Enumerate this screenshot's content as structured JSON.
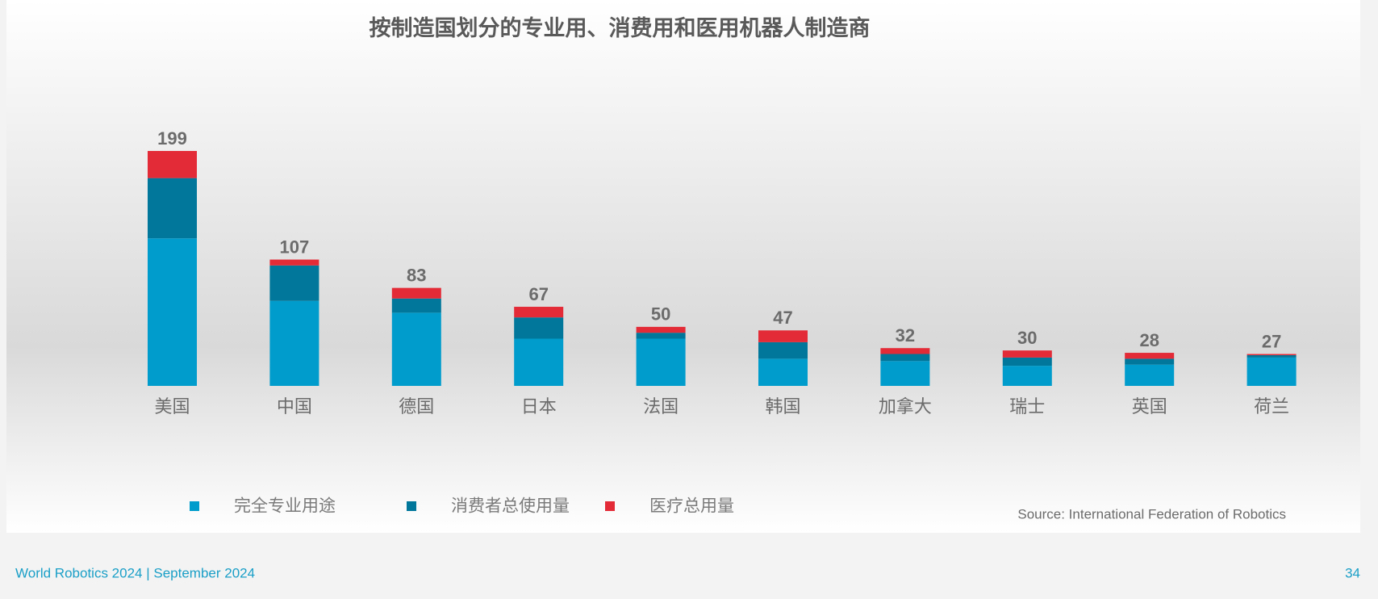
{
  "chart_data": {
    "type": "stacked_bar",
    "title": "按制造国划分的专业用、消费用和医用机器人制造商",
    "categories": [
      "美国",
      "中国",
      "德国",
      "日本",
      "法国",
      "韩国",
      "加拿大",
      "瑞士",
      "英国",
      "荷兰"
    ],
    "series": [
      {
        "name": "完全专业用途",
        "color": "#009ccc",
        "values": [
          125,
          72,
          62,
          40,
          40,
          23,
          21,
          17,
          18,
          24
        ]
      },
      {
        "name": "消费者总使用量",
        "color": "#00779b",
        "values": [
          51,
          30,
          12,
          18,
          5,
          14,
          6,
          7,
          5,
          2
        ]
      },
      {
        "name": "医疗总用量",
        "color": "#e32b37",
        "values": [
          23,
          5,
          9,
          9,
          5,
          10,
          5,
          6,
          5,
          1
        ]
      }
    ],
    "totals": [
      199,
      107,
      83,
      67,
      50,
      47,
      32,
      30,
      28,
      27
    ],
    "source": "Source: International Federation of Robotics",
    "footer": "World Robotics 2024  | September 2024",
    "page_number": "34"
  }
}
